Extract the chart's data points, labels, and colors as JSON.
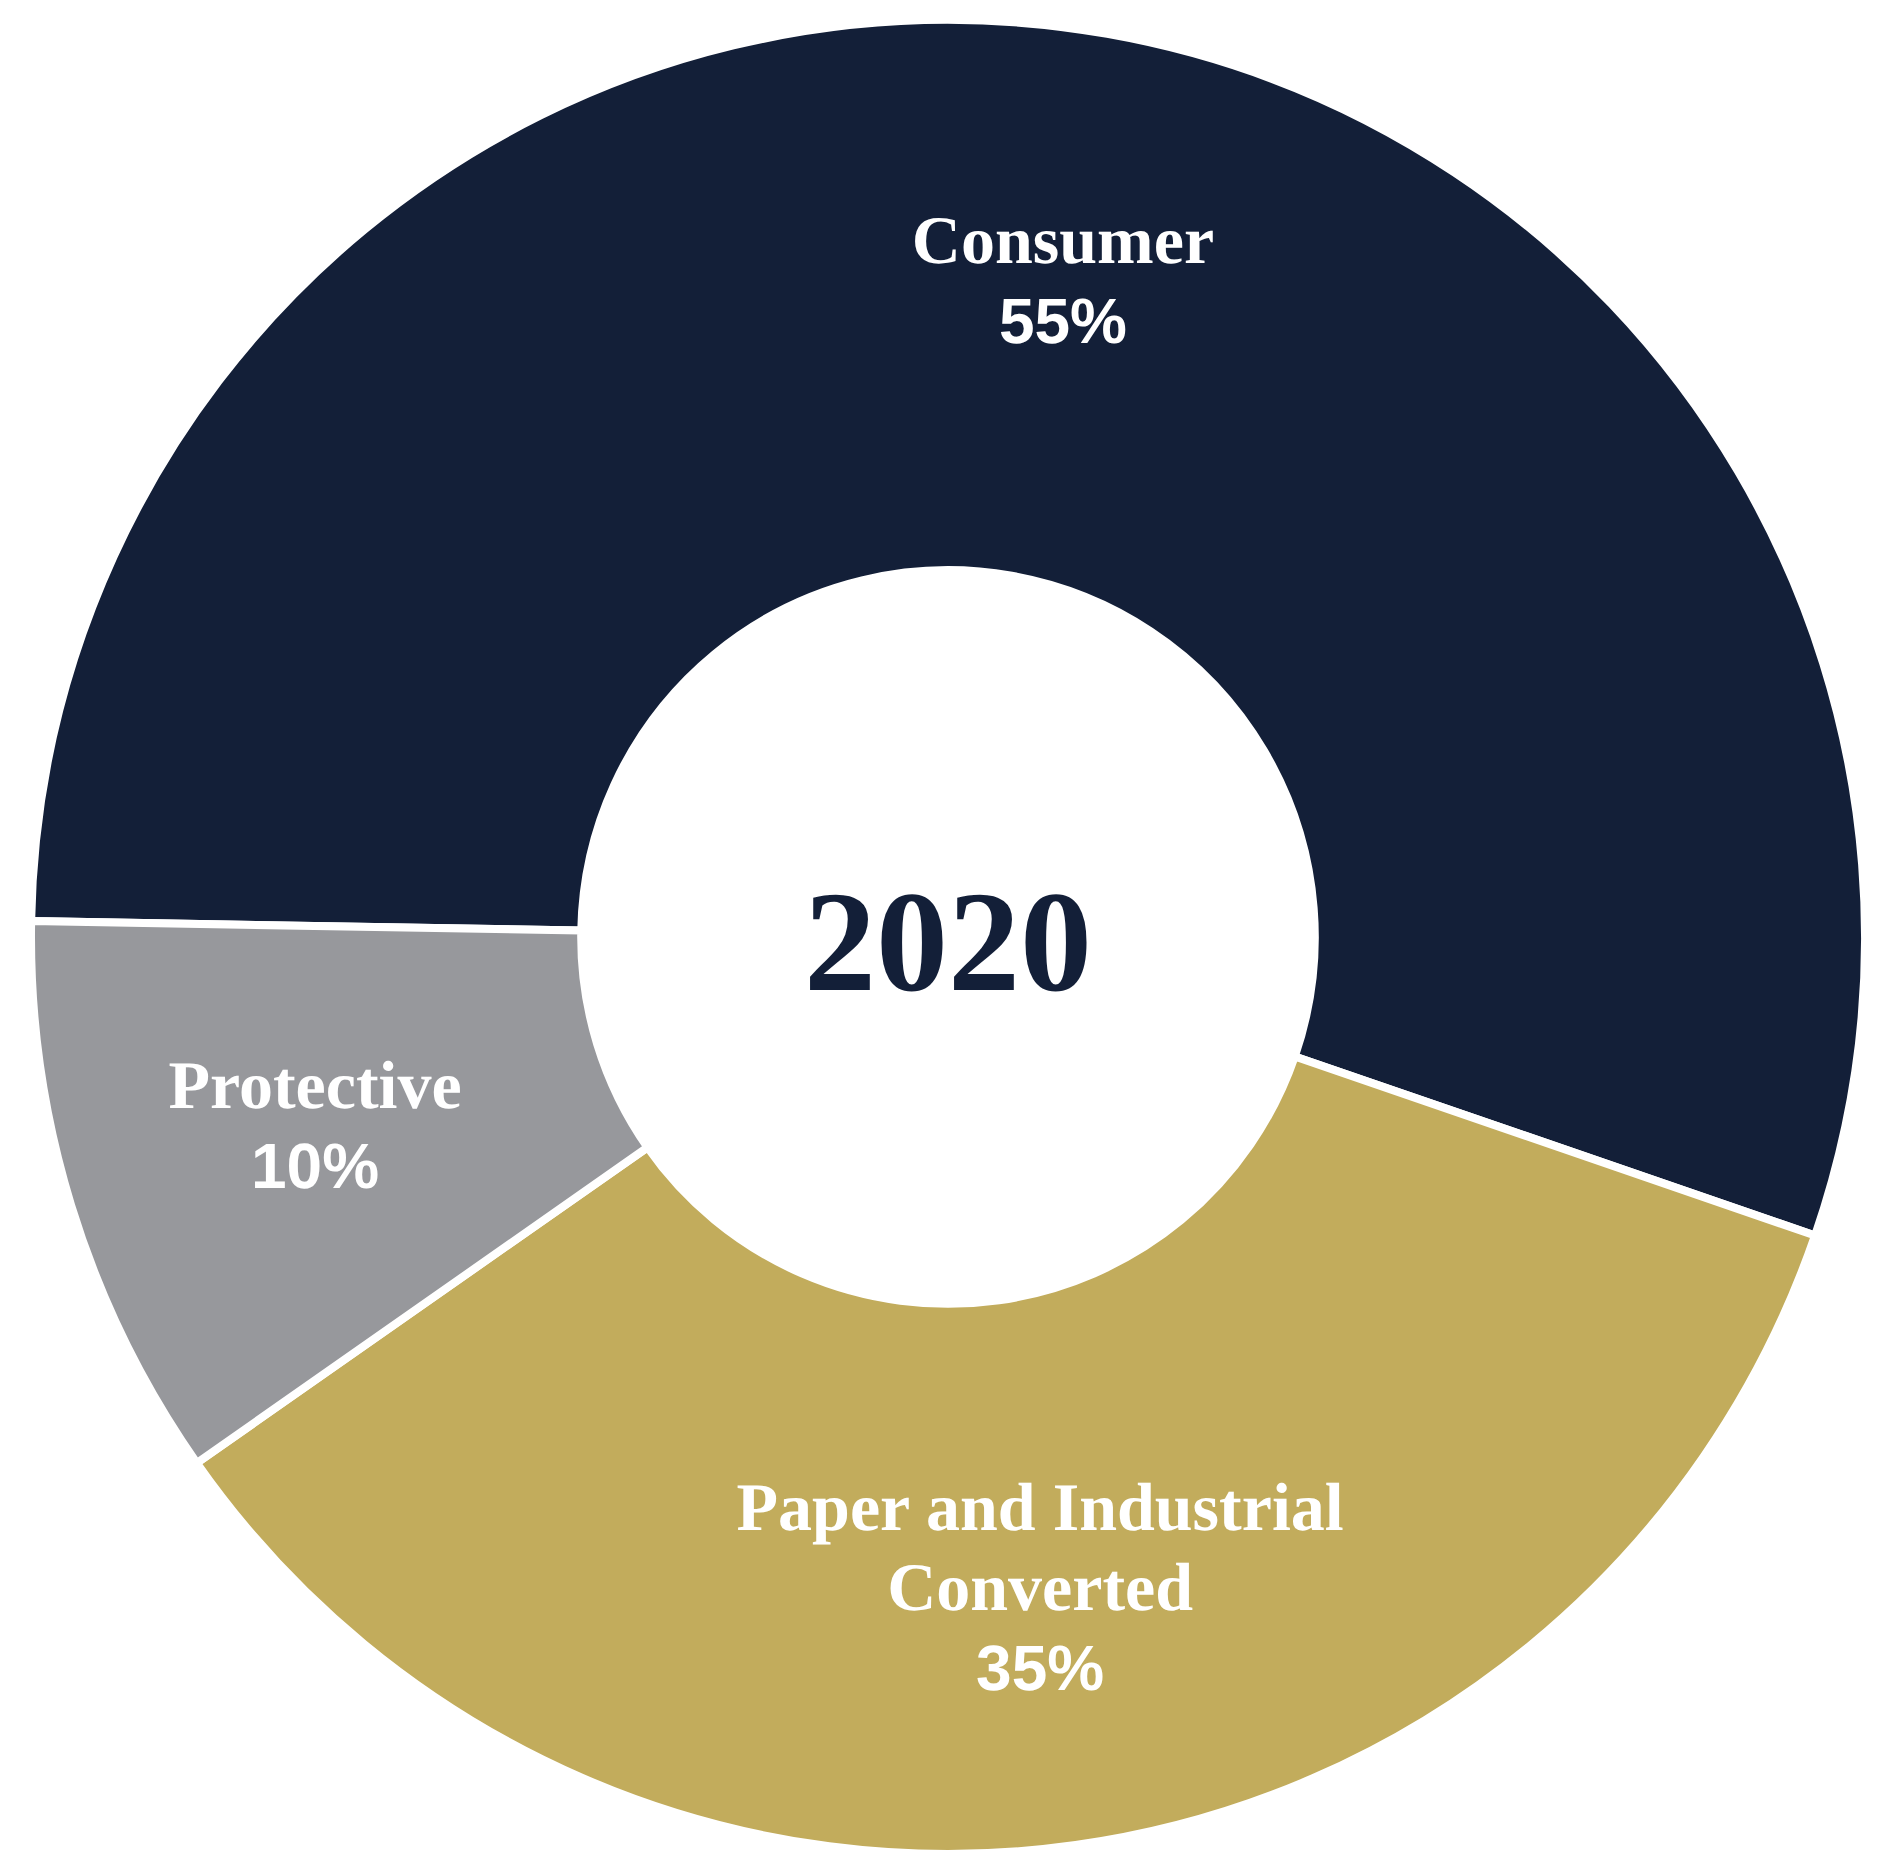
{
  "chart_data": {
    "type": "donut",
    "categories": [
      "Consumer",
      "Paper and Industrial Converted",
      "Protective"
    ],
    "values": [
      55,
      35,
      10
    ],
    "colors": [
      "#131f38",
      "#c2ac5c",
      "#97989c"
    ],
    "value_labels": [
      "55%",
      "35%",
      "10%"
    ],
    "legend": false,
    "annotations": [
      "2020"
    ]
  }
}
